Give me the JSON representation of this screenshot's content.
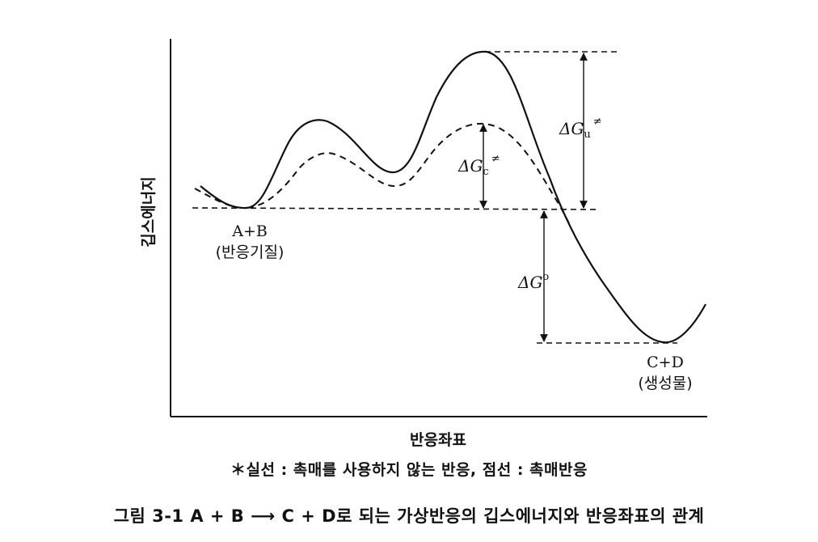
{
  "axes": {
    "y_label": "깁스에너지",
    "x_label": "반응좌표"
  },
  "states": {
    "reactant": {
      "formula": "A+B",
      "name": "(반응기질)"
    },
    "product": {
      "formula": "C+D",
      "name": "(생성물)"
    }
  },
  "energy_labels": {
    "uncatalyzed": {
      "delta": "ΔG",
      "sub": "u",
      "sup": "≠"
    },
    "catalyzed": {
      "delta": "ΔG",
      "sub": "c",
      "sup": "≠"
    },
    "standard": {
      "delta": "ΔG",
      "sup": "o"
    }
  },
  "note": "＊실선 : 촉매를 사용하지 않는 반응,   점선 : 촉매반응",
  "caption": "그림 3-1   A + B ⟶ C + D로 되는 가상반응의 깁스에너지와 반응좌표의 관계",
  "colors": {
    "ink": "#111111",
    "background": "#ffffff"
  }
}
